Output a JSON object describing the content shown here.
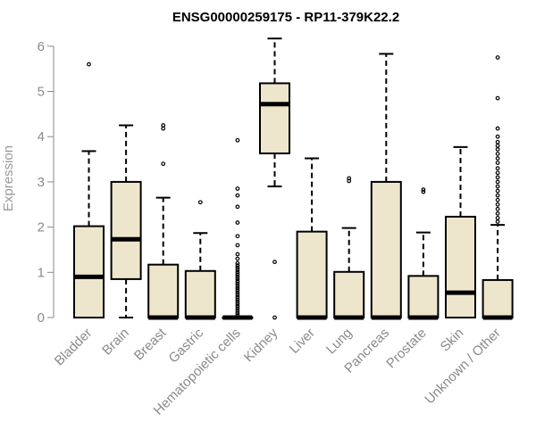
{
  "chart_data": {
    "type": "boxplot",
    "title": "ENSG00000259175 - RP11-379K22.2",
    "ylabel": "Expression",
    "xlabel": "",
    "ylim": [
      0,
      6.2
    ],
    "yticks": [
      0,
      1,
      2,
      3,
      4,
      5,
      6
    ],
    "grid": false,
    "colors": {
      "box_fill": "#ede6cc",
      "stroke": "#000000",
      "axis": "#8a8a8a",
      "title": "#000000"
    },
    "categories": [
      "Bladder",
      "Brain",
      "Breast",
      "Gastric",
      "Hematopoietic cells",
      "Kidney",
      "Liver",
      "Lung",
      "Pancreas",
      "Prostate",
      "Skin",
      "Unknown / Other"
    ],
    "boxes": [
      {
        "category": "Bladder",
        "whisker_low": 0,
        "q1": 0,
        "median": 0.9,
        "q3": 2.02,
        "whisker_high": 3.68,
        "outliers": [
          5.6
        ]
      },
      {
        "category": "Brain",
        "whisker_low": 0,
        "q1": 0.85,
        "median": 1.73,
        "q3": 3.0,
        "whisker_high": 4.25,
        "outliers": []
      },
      {
        "category": "Breast",
        "whisker_low": 0,
        "q1": 0,
        "median": 0,
        "q3": 1.17,
        "whisker_high": 2.65,
        "outliers": [
          3.4,
          4.18,
          4.25
        ]
      },
      {
        "category": "Gastric",
        "whisker_low": 0,
        "q1": 0,
        "median": 0,
        "q3": 1.03,
        "whisker_high": 1.87,
        "outliers": [
          2.55
        ]
      },
      {
        "category": "Hematopoietic cells",
        "whisker_low": 0,
        "q1": 0,
        "median": 0,
        "q3": 0,
        "whisker_high": 0,
        "outliers": [
          0.05,
          0.1,
          0.15,
          0.2,
          0.25,
          0.3,
          0.35,
          0.4,
          0.45,
          0.5,
          0.55,
          0.6,
          0.65,
          0.7,
          0.75,
          0.8,
          0.85,
          0.9,
          0.95,
          1.0,
          1.05,
          1.1,
          1.15,
          1.2,
          1.3,
          1.4,
          1.6,
          1.8,
          2.1,
          2.45,
          2.7,
          2.85,
          3.92
        ]
      },
      {
        "category": "Kidney",
        "whisker_low": 2.9,
        "q1": 3.63,
        "median": 4.72,
        "q3": 5.18,
        "whisker_high": 6.17,
        "outliers": [
          0,
          1.23
        ]
      },
      {
        "category": "Liver",
        "whisker_low": 0,
        "q1": 0,
        "median": 0,
        "q3": 1.9,
        "whisker_high": 3.52,
        "outliers": []
      },
      {
        "category": "Lung",
        "whisker_low": 0,
        "q1": 0,
        "median": 0,
        "q3": 1.01,
        "whisker_high": 1.98,
        "outliers": [
          3.02,
          3.08
        ]
      },
      {
        "category": "Pancreas",
        "whisker_low": 0,
        "q1": 0,
        "median": 0,
        "q3": 3.0,
        "whisker_high": 5.83,
        "outliers": []
      },
      {
        "category": "Prostate",
        "whisker_low": 0,
        "q1": 0,
        "median": 0,
        "q3": 0.92,
        "whisker_high": 1.88,
        "outliers": [
          2.78,
          2.83
        ]
      },
      {
        "category": "Skin",
        "whisker_low": 0,
        "q1": 0,
        "median": 0.55,
        "q3": 2.23,
        "whisker_high": 3.77,
        "outliers": []
      },
      {
        "category": "Unknown / Other",
        "whisker_low": 0,
        "q1": 0,
        "median": 0,
        "q3": 0.83,
        "whisker_high": 2.05,
        "outliers": [
          2.12,
          2.2,
          2.3,
          2.4,
          2.5,
          2.6,
          2.7,
          2.8,
          2.9,
          3.0,
          3.1,
          3.2,
          3.3,
          3.42,
          3.52,
          3.62,
          3.72,
          3.8,
          3.88,
          4.0,
          4.18,
          4.85,
          5.75
        ]
      }
    ]
  }
}
